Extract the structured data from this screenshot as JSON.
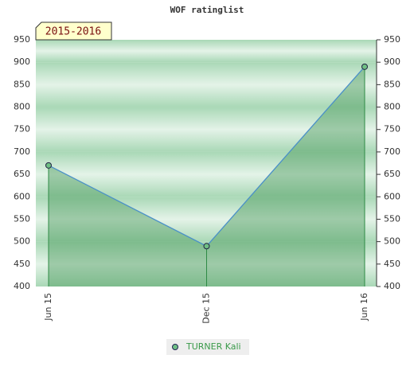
{
  "chart_data": {
    "type": "area",
    "title": "WOF ratinglist",
    "annotation": "2015-2016",
    "categories": [
      "Jun 15",
      "Dec 15",
      "Jun 16"
    ],
    "series": [
      {
        "name": "TURNER Kali",
        "color": "#4a9a5a",
        "values": [
          670,
          490,
          890
        ]
      }
    ],
    "ylim": [
      400,
      950
    ],
    "yticks": [
      400,
      450,
      500,
      550,
      600,
      650,
      700,
      750,
      800,
      850,
      900,
      950
    ],
    "grid": true
  }
}
